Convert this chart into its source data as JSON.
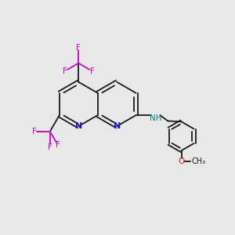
{
  "background_color": "#e8e8e8",
  "bond_color": "#1a1a1a",
  "N_color": "#1a1acc",
  "F_color": "#cc00cc",
  "O_color": "#cc2200",
  "NH_color": "#008888",
  "lw": 1.3,
  "xlim": [
    0,
    10
  ],
  "ylim": [
    0,
    10
  ],
  "BL": 0.95
}
